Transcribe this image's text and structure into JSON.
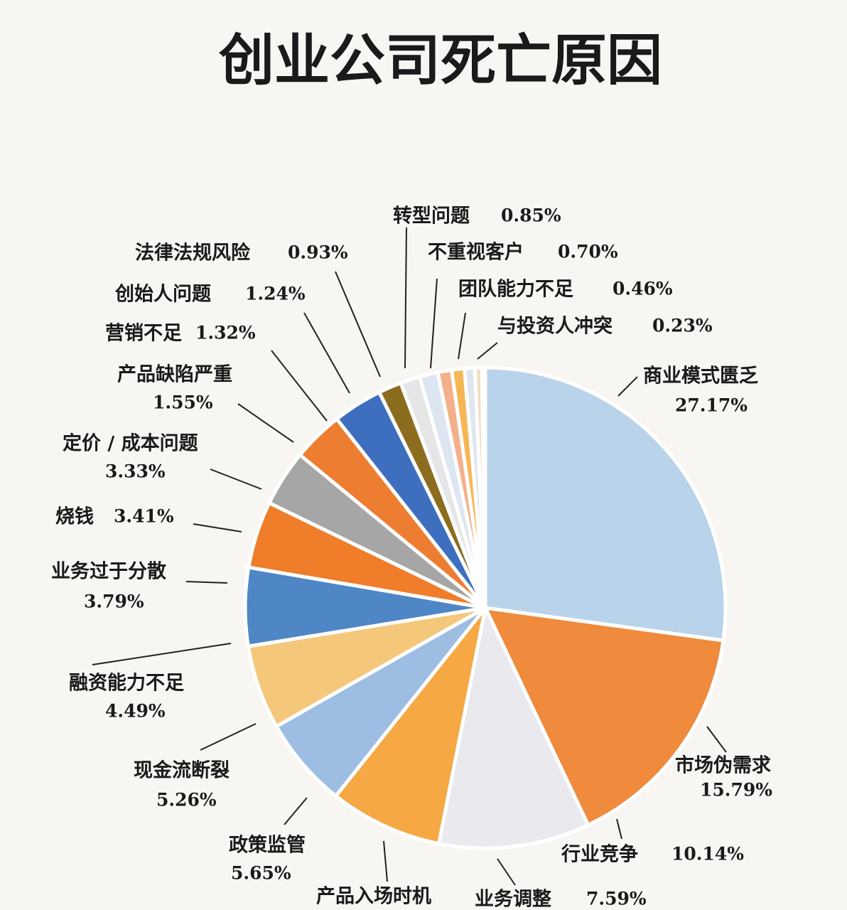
{
  "chart_data": {
    "type": "pie",
    "title": "创业公司死亡原因",
    "categories": [
      "商业模式匮乏",
      "市场伪需求",
      "行业竞争",
      "业务调整",
      "产品入场时机",
      "政策监管",
      "现金流断裂",
      "融资能力不足",
      "业务过于分散",
      "烧钱",
      "定价 / 成本问题",
      "产品缺陷严重",
      "营销不足",
      "创始人问题",
      "法律法规风险",
      "转型问题",
      "不重视客户",
      "团队能力不足",
      "与投资人冲突"
    ],
    "values": [
      27.17,
      15.79,
      10.14,
      7.59,
      6.1,
      5.65,
      5.26,
      4.49,
      3.79,
      3.41,
      3.33,
      1.55,
      1.32,
      1.24,
      0.93,
      0.85,
      0.7,
      0.46,
      0.23
    ],
    "value_labels": [
      "27.17%",
      "15.79%",
      "10.14%",
      "7.59%",
      null,
      "5.65%",
      "5.26%",
      "4.49%",
      "3.79%",
      "3.41%",
      "3.33%",
      "1.55%",
      "1.32%",
      "1.24%",
      "0.93%",
      "0.85%",
      "0.70%",
      "0.46%",
      "0.23%"
    ],
    "colors": [
      "#b9d3ea",
      "#f08a3c",
      "#e9e9ee",
      "#f5a843",
      "#9dbde3",
      "#f5c77b",
      "#4f86c6",
      "#ef7d2a",
      "#a6a6a6",
      "#ed7d31",
      "#3e6fbf",
      "#8c6d1f",
      "#e6e6e6",
      "#dde6f0",
      "#f4b08a",
      "#f6b655",
      "#dfe6f0",
      "#f0dcc0",
      "#a8c4dc"
    ]
  }
}
